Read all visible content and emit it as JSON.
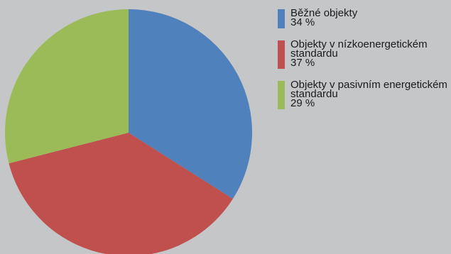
{
  "chart_data": {
    "type": "pie",
    "title": "",
    "slices": [
      {
        "label": "Běžné objekty",
        "value": 34,
        "value_label": "34 %",
        "color": "#4f81bd"
      },
      {
        "label": "Objekty v nízkoenergetickém standardu",
        "value": 37,
        "value_label": "37 %",
        "color": "#c0504d"
      },
      {
        "label": "Objekty v pasivním energetickém standardu",
        "value": 29,
        "value_label": "29 %",
        "color": "#9bbb59"
      }
    ],
    "start_angle_deg": 0,
    "direction": "clockwise",
    "legend_position": "right"
  }
}
